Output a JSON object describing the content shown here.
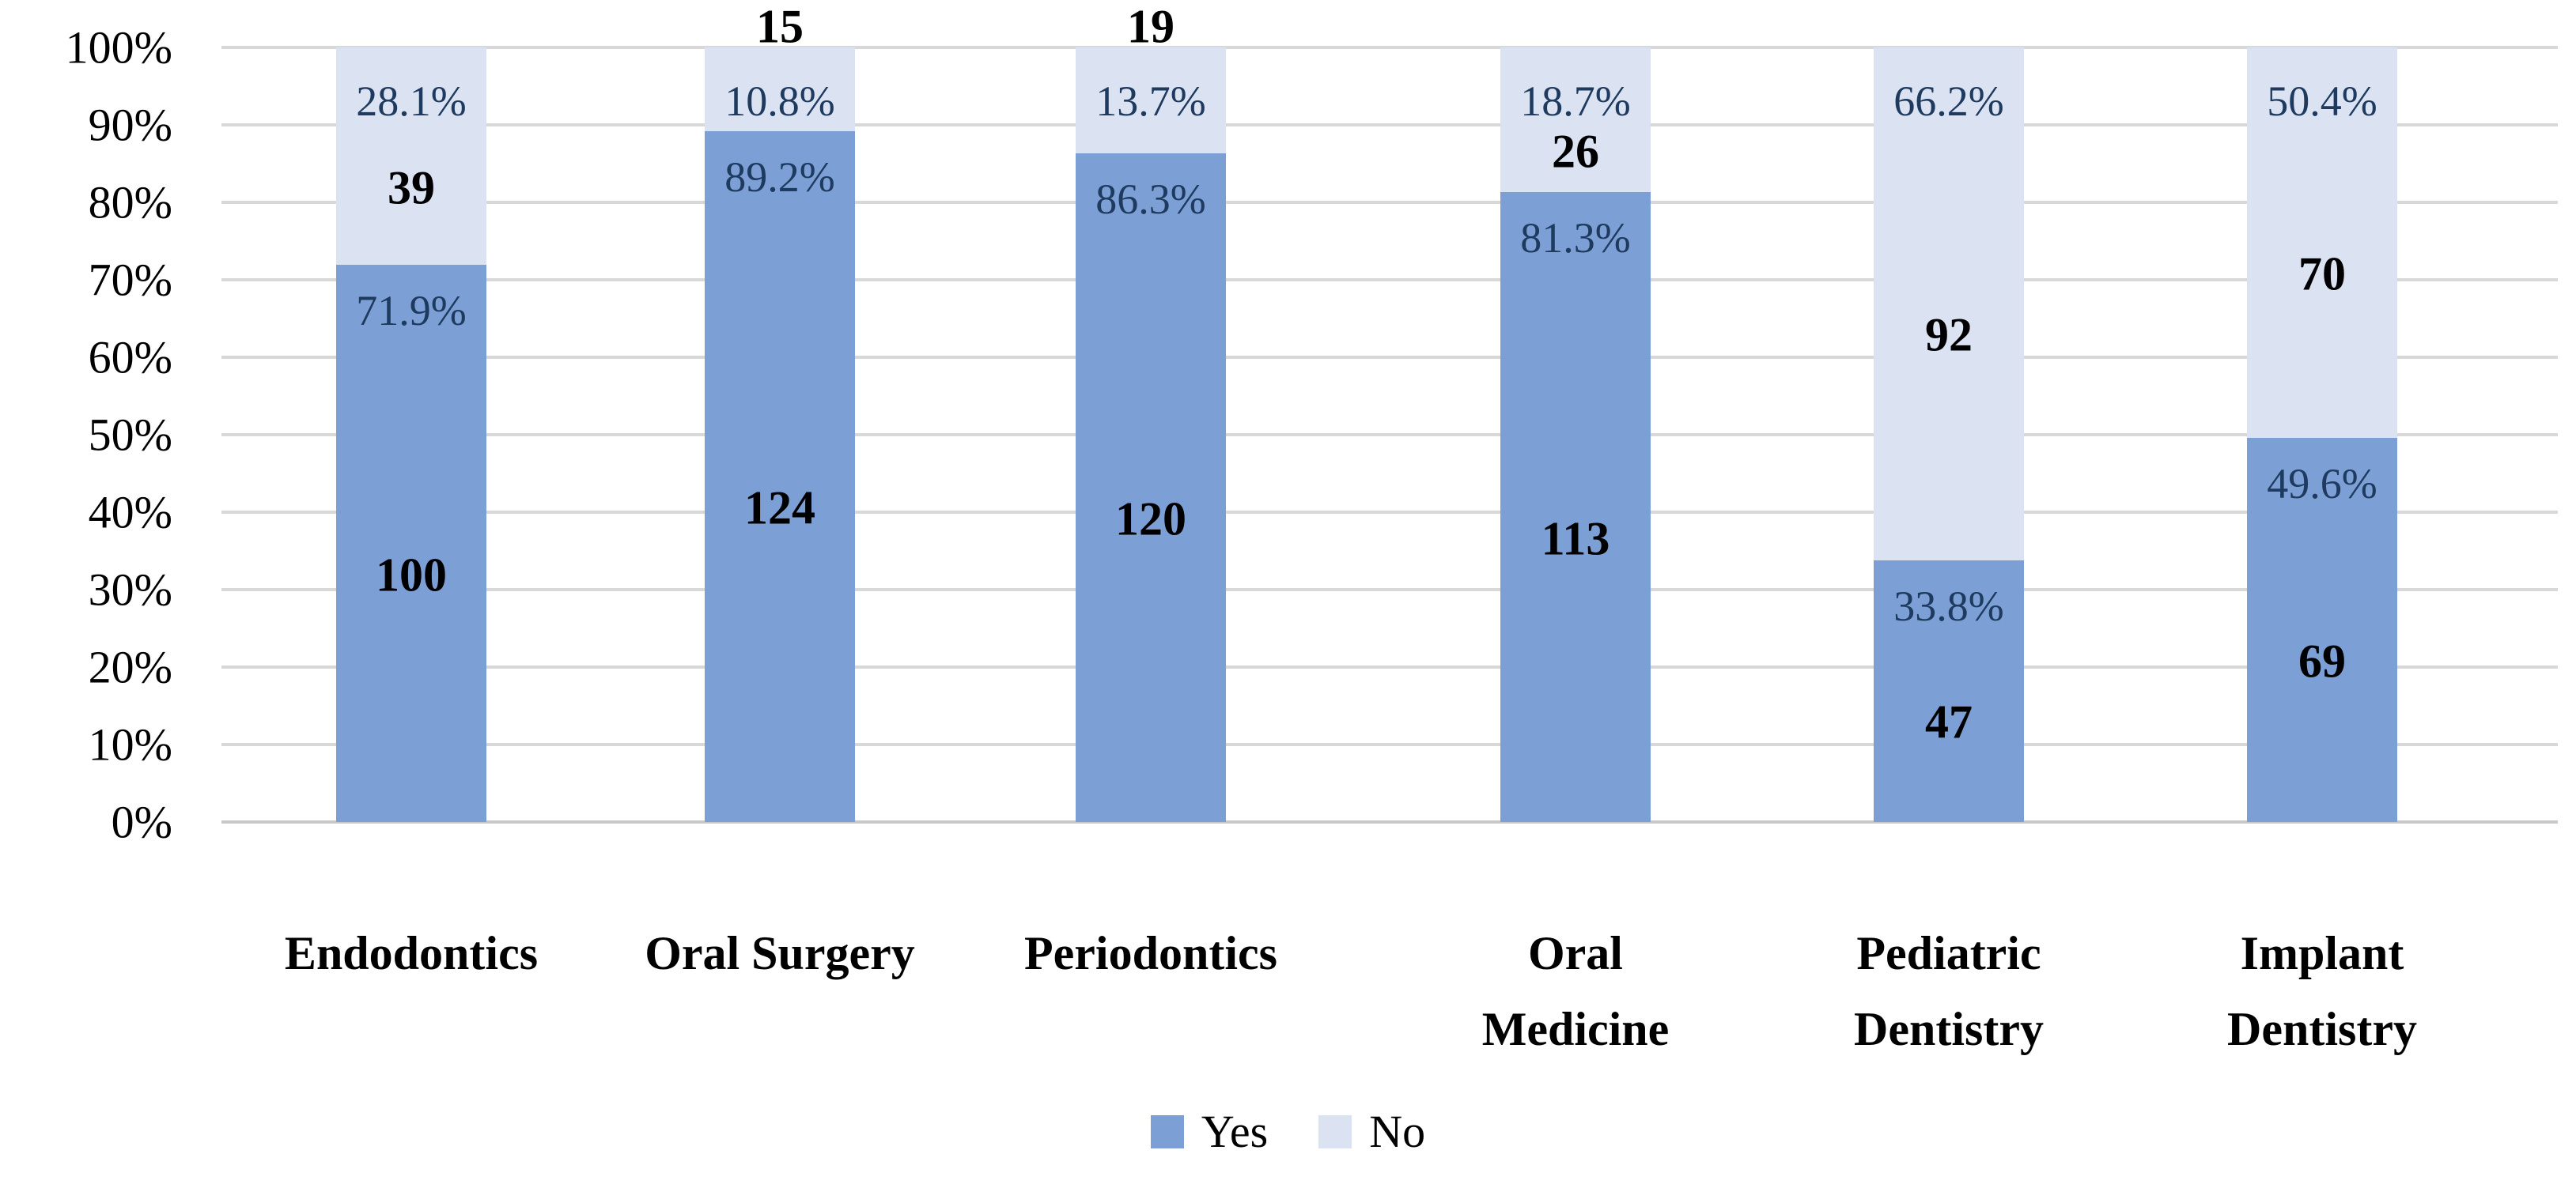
{
  "chart_data": {
    "type": "bar",
    "variant": "stacked-100-percent-column",
    "title": "",
    "categories": [
      "Endodontics",
      "Oral Surgery",
      "Periodontics",
      "Oral Medicine",
      "Pediatric Dentistry",
      "Implant Dentistry"
    ],
    "category_label_lines": [
      [
        "Endodontics"
      ],
      [
        "Oral Surgery"
      ],
      [
        "Periodontics"
      ],
      [
        "Oral",
        "Medicine"
      ],
      [
        "Pediatric",
        "Dentistry"
      ],
      [
        "Implant",
        "Dentistry"
      ]
    ],
    "series": [
      {
        "name": "Yes",
        "color": "#7ca0d6",
        "values_pct": [
          71.9,
          89.2,
          86.3,
          81.3,
          33.8,
          49.6
        ],
        "counts": [
          100,
          124,
          120,
          113,
          47,
          69
        ],
        "percent_labels": [
          "71.9%",
          "89.2%",
          "86.3%",
          "81.3%",
          "33.8%",
          "49.6%"
        ]
      },
      {
        "name": "No",
        "color": "#dbe3f2",
        "values_pct": [
          28.1,
          10.8,
          13.7,
          18.7,
          66.2,
          50.4
        ],
        "counts": [
          39,
          15,
          19,
          26,
          92,
          70
        ],
        "percent_labels": [
          "28.1%",
          "10.8%",
          "13.7%",
          "18.7%",
          "66.2%",
          "50.4%"
        ]
      }
    ],
    "y_axis": {
      "tick_labels": [
        "0%",
        "10%",
        "20%",
        "30%",
        "40%",
        "50%",
        "60%",
        "70%",
        "80%",
        "90%",
        "100%"
      ],
      "min_pct": 0,
      "max_pct": 100,
      "grid": true
    },
    "legend": {
      "position": "bottom-center",
      "entries": [
        {
          "label": "Yes",
          "color": "#7ca0d6"
        },
        {
          "label": "No",
          "color": "#dbe3f2"
        }
      ]
    },
    "styles": {
      "percent_text_color": "#1e3a5f",
      "count_text_color": "#000000",
      "gridline_color": "#d8d8d8",
      "background": "#ffffff"
    }
  }
}
